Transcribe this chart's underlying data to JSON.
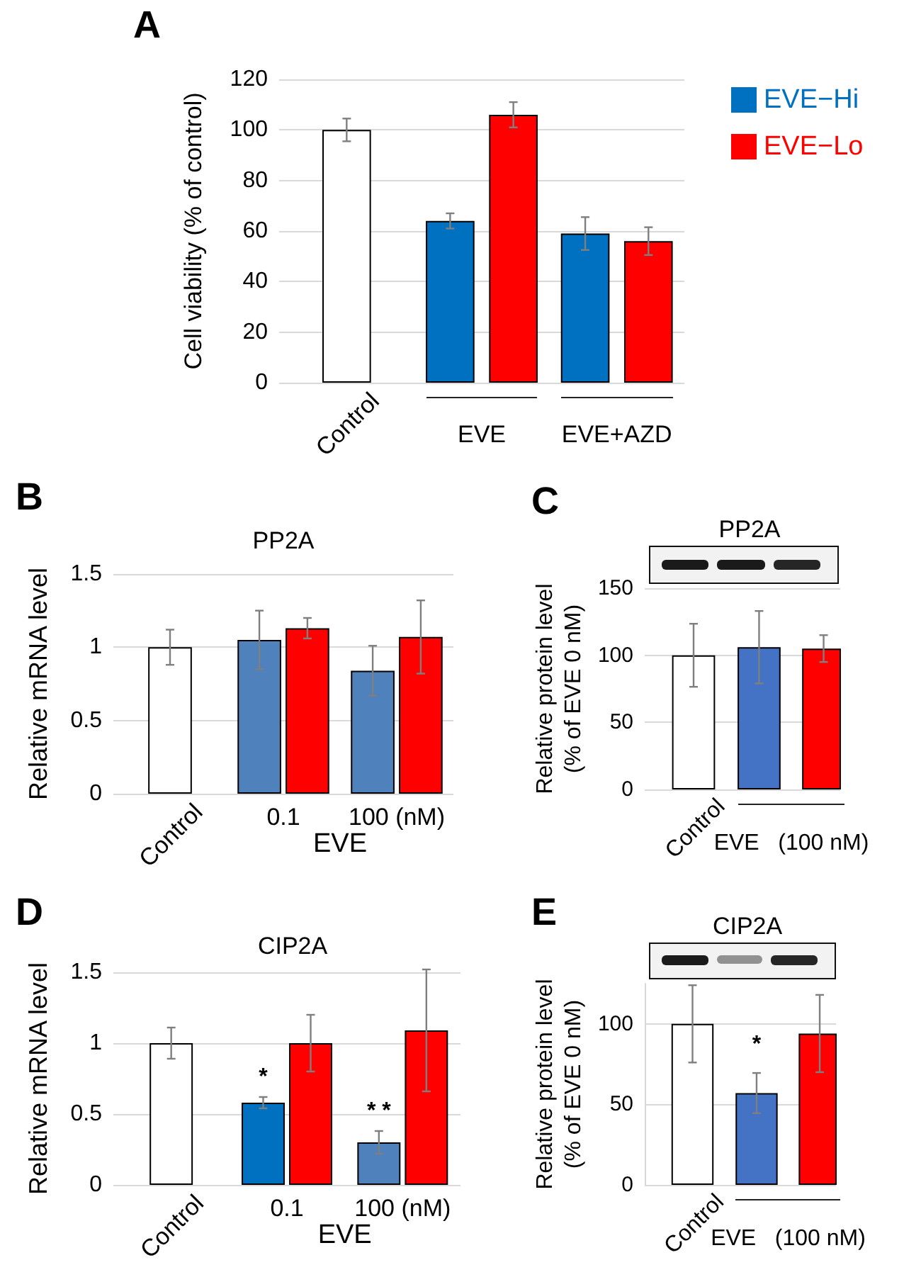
{
  "chart_data": [
    {
      "type": "bar",
      "annotations": [
        "A"
      ],
      "ylabel": "Cell viability (% of control)",
      "categories": [
        "Control",
        "EVE",
        "EVE+AZD"
      ],
      "series": [
        {
          "color": "#ffffff",
          "values": [
            100,
            null,
            null
          ],
          "errors": [
            4.5,
            null,
            null
          ]
        },
        {
          "name": "EVE−Hi",
          "color": "#0070c0",
          "values": [
            null,
            64,
            59
          ],
          "errors": [
            null,
            3,
            6.5
          ]
        },
        {
          "name": "EVE−Lo",
          "color": "#ff0000",
          "values": [
            null,
            106,
            56
          ],
          "errors": [
            null,
            5,
            5.5
          ]
        }
      ],
      "ylim": [
        0,
        120
      ],
      "yticks": [
        0,
        20,
        40,
        60,
        80,
        100,
        120
      ],
      "grid": "y",
      "legend": "right"
    },
    {
      "type": "bar",
      "annotations": [
        "B"
      ],
      "title": "PP2A",
      "ylabel": "Relative mRNA level",
      "xlabel": "EVE",
      "categories": [
        "Control",
        "0.1",
        "100 (nM)"
      ],
      "series": [
        {
          "color": "#ffffff",
          "values": [
            1,
            null,
            null
          ],
          "errors": [
            0.12,
            null,
            null
          ]
        },
        {
          "color": "#4f81bd",
          "values": [
            null,
            1.05,
            0.84
          ],
          "errors": [
            null,
            0.2,
            0.17
          ]
        },
        {
          "color": "#ff0000",
          "values": [
            null,
            1.13,
            1.07
          ],
          "errors": [
            null,
            0.07,
            0.25
          ]
        }
      ],
      "ylim": [
        0,
        1.5
      ],
      "yticks": [
        0,
        0.5,
        1,
        1.5
      ],
      "grid": "y"
    },
    {
      "type": "bar",
      "annotations": [
        "C"
      ],
      "title": "PP2A",
      "ylabel": "Relative protein level\n(% of EVE 0 nM)",
      "categories": [
        "Control",
        "EVE   (100 nM)"
      ],
      "series": [
        {
          "color": "#ffffff",
          "values": [
            100,
            null
          ],
          "errors": [
            23.5,
            null
          ]
        },
        {
          "color": "#4472c4",
          "values": [
            null,
            106
          ],
          "errors": [
            null,
            27
          ]
        },
        {
          "color": "#ff0000",
          "values": [
            null,
            105
          ],
          "errors": [
            null,
            10
          ]
        }
      ],
      "ylim": [
        0,
        150
      ],
      "yticks": [
        0,
        50,
        100,
        150
      ],
      "grid": "y"
    },
    {
      "type": "bar",
      "annotations": [
        "D",
        {
          "text": "*",
          "x": "0.1",
          "y": 0.62
        },
        {
          "text": "* *",
          "x": "100 (nM)",
          "y": 0.38
        }
      ],
      "title": "CIP2A",
      "ylabel": "Relative mRNA level",
      "xlabel": "EVE",
      "categories": [
        "Control",
        "0.1",
        "100 (nM)"
      ],
      "series": [
        {
          "color": "#ffffff",
          "values": [
            1,
            null,
            null
          ],
          "errors": [
            0.11,
            null,
            null
          ]
        },
        {
          "colors": [
            null,
            "#0070c0",
            "#4f81bd"
          ],
          "values": [
            null,
            0.58,
            0.3
          ],
          "errors": [
            null,
            0.04,
            0.08
          ]
        },
        {
          "color": "#ff0000",
          "values": [
            null,
            1.0,
            1.09
          ],
          "errors": [
            null,
            0.2,
            0.43
          ]
        }
      ],
      "ylim": [
        0,
        1.5
      ],
      "yticks": [
        0,
        0.5,
        1,
        1.5
      ],
      "grid": "y"
    },
    {
      "type": "bar",
      "annotations": [
        "E",
        "*"
      ],
      "title": "CIP2A",
      "ylabel": "Relative protein level\n(% of EVE 0 nM)",
      "categories": [
        "Control",
        "EVE   (100 nM)"
      ],
      "series": [
        {
          "color": "#ffffff",
          "values": [
            100,
            null
          ],
          "errors": [
            24,
            null
          ]
        },
        {
          "color": "#4472c4",
          "values": [
            null,
            57
          ],
          "errors": [
            null,
            12.5
          ]
        },
        {
          "color": "#ff0000",
          "values": [
            null,
            94
          ],
          "errors": [
            null,
            24
          ]
        }
      ],
      "ylim": [
        0,
        125
      ],
      "yticks": [
        0,
        50,
        100
      ],
      "grid": "y"
    }
  ]
}
